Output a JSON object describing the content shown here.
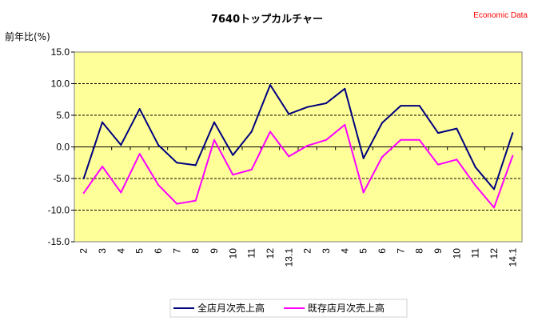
{
  "chart_data": {
    "type": "line",
    "title": "7640トップカルチャー",
    "source_note": "Economic Data",
    "ylabel": "前年比(%)",
    "ylim": [
      -15,
      15
    ],
    "yticks": [
      15,
      10,
      5,
      0,
      -5,
      -10,
      -15
    ],
    "ytick_labels": [
      "15.0",
      "10.0",
      "5.0",
      "0.0",
      "-5.0",
      "-10.0",
      "-15.0"
    ],
    "categories": [
      "2",
      "3",
      "4",
      "5",
      "6",
      "7",
      "8",
      "9",
      "10",
      "11",
      "12",
      "13.1",
      "2",
      "3",
      "4",
      "5",
      "6",
      "7",
      "8",
      "9",
      "10",
      "11",
      "12",
      "14.1"
    ],
    "grid": "horizontal dashed",
    "legend_position": "bottom",
    "plot_background": "#ffff99",
    "series": [
      {
        "name": "全店月次売上高",
        "color": "#000080",
        "values": [
          -5.0,
          3.9,
          0.3,
          6.0,
          0.3,
          -2.5,
          -2.9,
          3.9,
          -1.3,
          2.4,
          9.8,
          5.2,
          6.3,
          6.9,
          9.2,
          -1.8,
          3.8,
          6.5,
          6.5,
          2.2,
          2.9,
          -3.2,
          -6.7,
          2.2
        ]
      },
      {
        "name": "既存店月次売上高",
        "color": "#ff00ff",
        "values": [
          -7.3,
          -3.1,
          -7.2,
          -1.1,
          -6.0,
          -9.0,
          -8.5,
          1.1,
          -4.4,
          -3.6,
          2.4,
          -1.5,
          0.2,
          1.1,
          3.5,
          -7.2,
          -1.6,
          1.1,
          1.1,
          -2.8,
          -2.0,
          -6.1,
          -9.6,
          -1.4
        ]
      }
    ]
  }
}
